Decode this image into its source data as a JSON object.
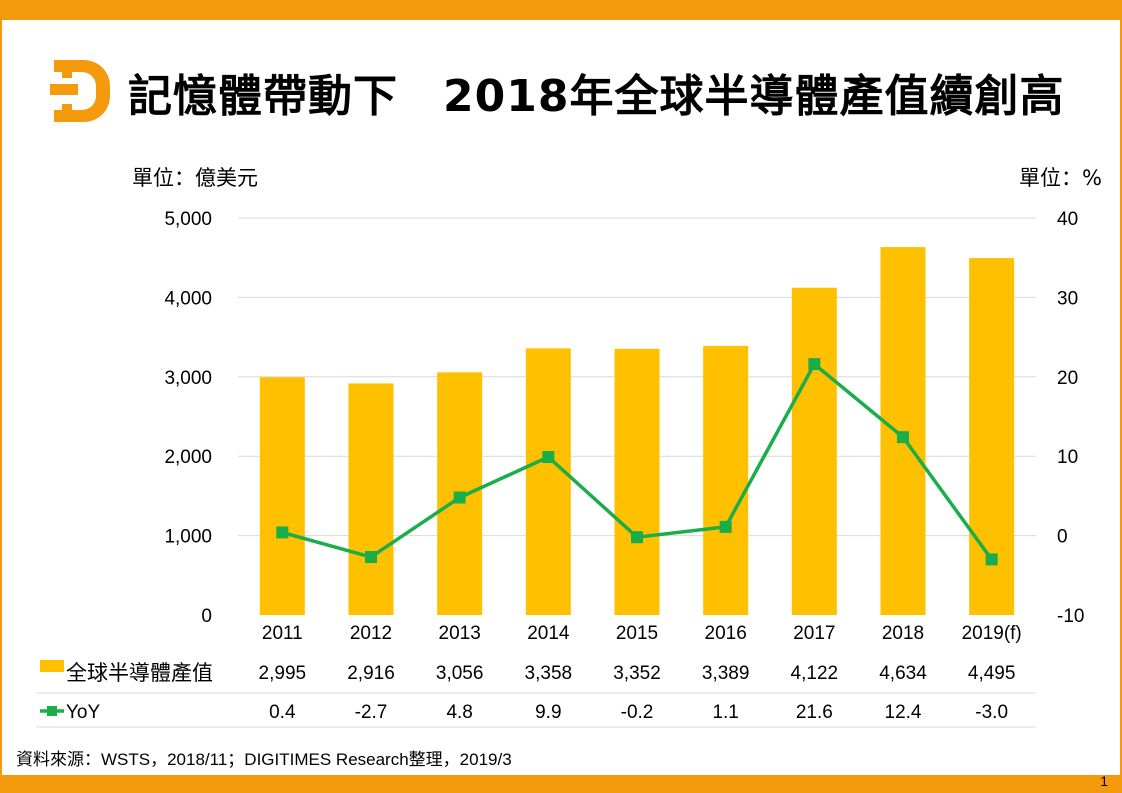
{
  "title": "記憶體帶動下　2018年全球半導體產值續創高",
  "left_unit": "單位：億美元",
  "right_unit": "單位：%",
  "source": "資料來源：WSTS，2018/11；DIGITIMES Research整理，2019/3",
  "page_number": "1",
  "colors": {
    "bar": "#ffc000",
    "line": "#1aae4a",
    "accent": "#f59a0c",
    "grid": "#d9d9d9"
  },
  "chart_data": {
    "type": "bar",
    "categories": [
      "2011",
      "2012",
      "2013",
      "2014",
      "2015",
      "2016",
      "2017",
      "2018",
      "2019(f)"
    ],
    "series": [
      {
        "name": "全球半導體產值",
        "type": "bar",
        "axis": "left",
        "values": [
          2995,
          2916,
          3056,
          3358,
          3352,
          3389,
          4122,
          4634,
          4495
        ]
      },
      {
        "name": "YoY",
        "type": "line",
        "axis": "right",
        "values": [
          0.4,
          -2.7,
          4.8,
          9.9,
          -0.2,
          1.1,
          21.6,
          12.4,
          -3.0
        ]
      }
    ],
    "table_values": {
      "bar": [
        "2,995",
        "2,916",
        "3,056",
        "3,358",
        "3,352",
        "3,389",
        "4,122",
        "4,634",
        "4,495"
      ],
      "line": [
        "0.4",
        "-2.7",
        "4.8",
        "9.9",
        "-0.2",
        "1.1",
        "21.6",
        "12.4",
        "-3.0"
      ]
    },
    "ylim_left": [
      0,
      5000
    ],
    "yticks_left": [
      0,
      1000,
      2000,
      3000,
      4000,
      5000
    ],
    "ytick_labels_left": [
      "0",
      "1,000",
      "2,000",
      "3,000",
      "4,000",
      "5,000"
    ],
    "ylim_right": [
      -10,
      40
    ],
    "yticks_right": [
      -10,
      0,
      10,
      20,
      30,
      40
    ],
    "ytick_labels_right": [
      "-10",
      "0",
      "10",
      "20",
      "30",
      "40"
    ],
    "grid": true,
    "legend_placement": "data table below chart"
  }
}
